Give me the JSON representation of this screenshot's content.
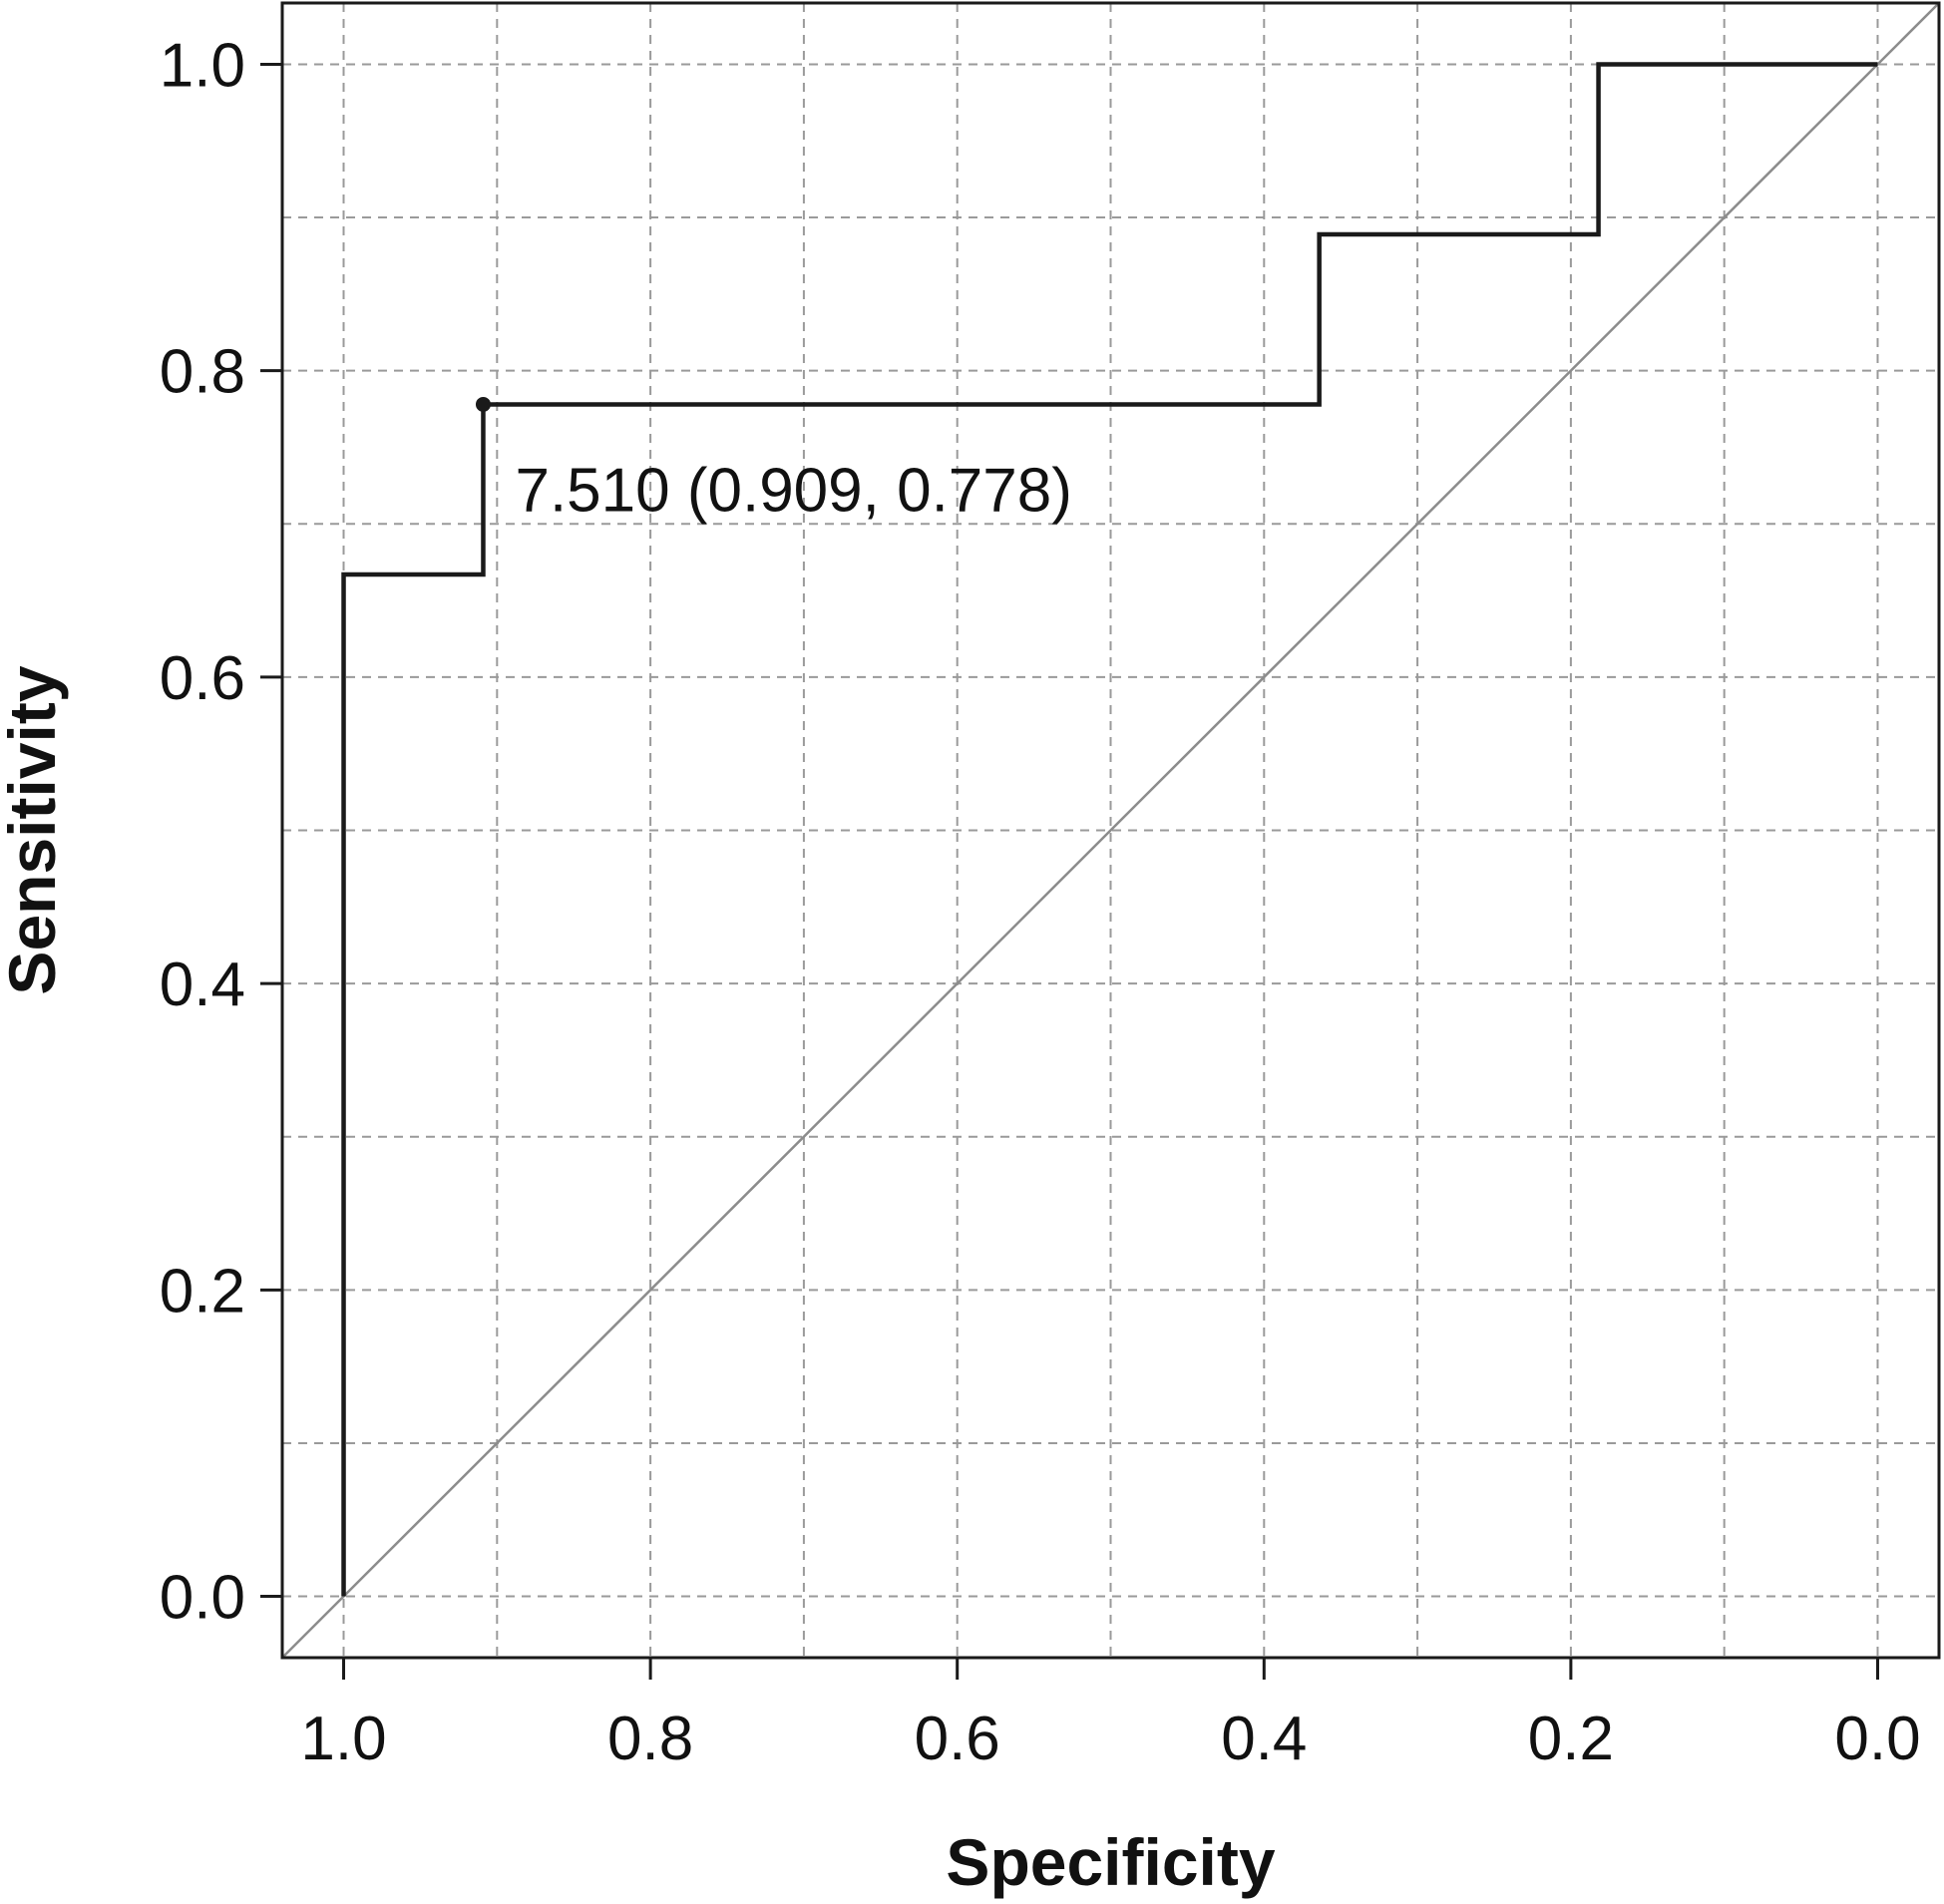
{
  "chart_data": {
    "type": "line",
    "xlabel": "Specificity",
    "ylabel": "Sensitivity",
    "x_reversed": true,
    "xlim": [
      1.04,
      -0.04
    ],
    "ylim": [
      -0.04,
      1.04
    ],
    "x_ticks": [
      1.0,
      0.8,
      0.6,
      0.4,
      0.2,
      0.0
    ],
    "x_tick_labels": [
      "1.0",
      "0.8",
      "0.6",
      "0.4",
      "0.2",
      "0.0"
    ],
    "y_ticks": [
      0.0,
      0.2,
      0.4,
      0.6,
      0.8,
      1.0
    ],
    "y_tick_labels": [
      "0.0",
      "0.2",
      "0.4",
      "0.6",
      "0.8",
      "1.0"
    ],
    "grid": true,
    "grid_x": [
      1.0,
      0.9,
      0.8,
      0.7,
      0.6,
      0.5,
      0.4,
      0.3,
      0.2,
      0.1,
      0.0
    ],
    "grid_y": [
      0.0,
      0.1,
      0.2,
      0.3,
      0.4,
      0.5,
      0.6,
      0.7,
      0.8,
      0.9,
      1.0
    ],
    "series": [
      {
        "kind": "step",
        "color": "#1a1a1a",
        "points": [
          [
            1.0,
            0.0
          ],
          [
            1.0,
            0.667
          ],
          [
            0.909,
            0.667
          ],
          [
            0.909,
            0.778
          ],
          [
            0.364,
            0.778
          ],
          [
            0.364,
            0.889
          ],
          [
            0.182,
            0.889
          ],
          [
            0.182,
            1.0
          ],
          [
            0.0,
            1.0
          ]
        ]
      }
    ],
    "reference_line": {
      "color": "#8c8c8c",
      "from": [
        1.0,
        0.0
      ],
      "to": [
        0.0,
        1.0
      ]
    },
    "highlight_point": {
      "x": 0.909,
      "y": 0.778,
      "label": "7.510 (0.909, 0.778)"
    }
  }
}
